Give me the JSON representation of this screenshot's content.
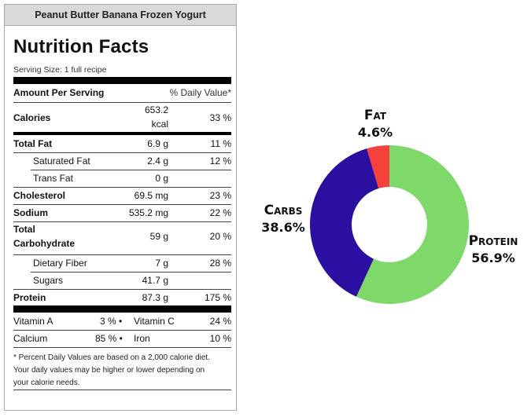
{
  "label": {
    "recipe_title": "Peanut Butter Banana Frozen Yogurt",
    "heading": "Nutrition Facts",
    "serving_size": "Serving Size: 1 full recipe",
    "amount_per_serving": "Amount Per Serving",
    "daily_value_header": "% Daily Value*",
    "calories": {
      "name": "Calories",
      "amount_line1": "653.2",
      "amount_line2": "kcal",
      "dv": "33 %"
    },
    "total_fat": {
      "name": "Total Fat",
      "amount": "6.9 g",
      "dv": "11 %"
    },
    "saturated_fat": {
      "name": "Saturated Fat",
      "amount": "2.4 g",
      "dv": "12 %"
    },
    "trans_fat": {
      "name": "Trans Fat",
      "amount": "0 g",
      "dv": ""
    },
    "cholesterol": {
      "name": "Cholesterol",
      "amount": "69.5 mg",
      "dv": "23 %"
    },
    "sodium": {
      "name": "Sodium",
      "amount": "535.2 mg",
      "dv": "22 %"
    },
    "total_carbohydrate": {
      "name_line1": "Total",
      "name_line2": "Carbohydrate",
      "amount": "59 g",
      "dv": "20 %"
    },
    "dietary_fiber": {
      "name": "Dietary Fiber",
      "amount": "7 g",
      "dv": "28 %"
    },
    "sugars": {
      "name": "Sugars",
      "amount": "41.7 g",
      "dv": ""
    },
    "protein": {
      "name": "Protein",
      "amount": "87.3 g",
      "dv": "175 %"
    },
    "vitamin_a": {
      "name": "Vitamin A",
      "dv": "3 % •"
    },
    "vitamin_c": {
      "name": "Vitamin C",
      "dv": "24 %"
    },
    "calcium": {
      "name": "Calcium",
      "dv": "85 % •"
    },
    "iron": {
      "name": "Iron",
      "dv": "10 %"
    },
    "footnote_line1": "* Percent Daily Values are based on a 2,000 calorie diet.",
    "footnote_line2": "Your daily values may be higher or lower depending on",
    "footnote_line3": "your calorie needs."
  },
  "chart_data": {
    "type": "pie",
    "title": "",
    "donut": true,
    "categories": [
      "Protein",
      "Carbs",
      "Fat"
    ],
    "values": [
      56.9,
      38.6,
      4.6
    ],
    "colors": [
      "#7ed96a",
      "#2a0fa0",
      "#f5403c"
    ],
    "labels": [
      {
        "name": "Protein",
        "pct": "56.9%"
      },
      {
        "name": "Carbs",
        "pct": "38.6%"
      },
      {
        "name": "Fat",
        "pct": "4.6%"
      }
    ]
  }
}
